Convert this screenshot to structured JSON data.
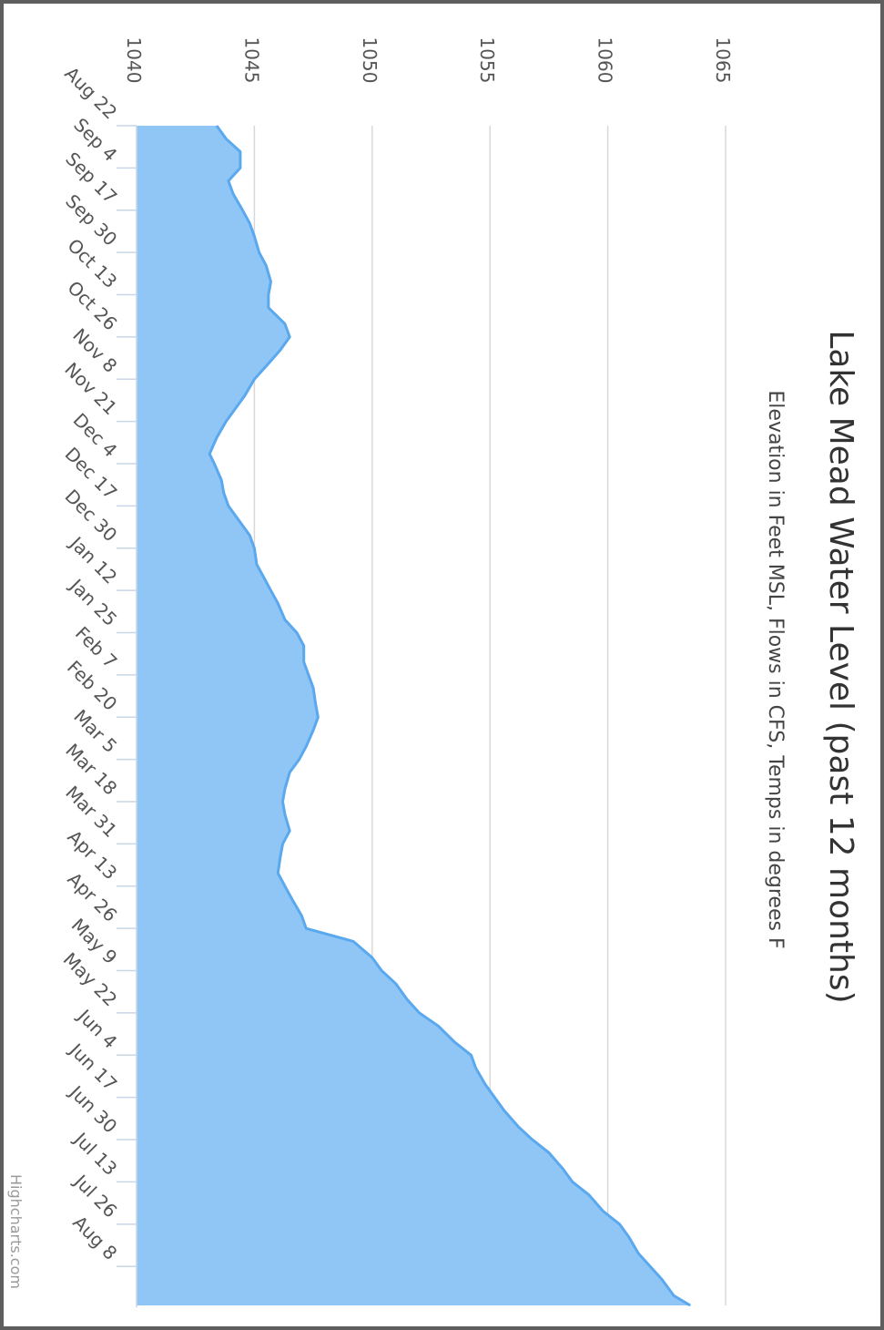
{
  "chart_data": {
    "type": "area",
    "title": "Lake Mead Water Level (past 12 months)",
    "subtitle": "Elevation in Feet MSL, Flows in CFS, Temps in degrees F",
    "xlabel": "",
    "ylabel": "",
    "ylim": [
      1040,
      1065
    ],
    "yticks": [
      1040,
      1045,
      1050,
      1055,
      1060,
      1065
    ],
    "xticks": [
      "Aug 22",
      "Sep 4",
      "Sep 17",
      "Sep 30",
      "Oct 13",
      "Oct 26",
      "Nov 8",
      "Nov 21",
      "Dec 4",
      "Dec 17",
      "Dec 30",
      "Jan 12",
      "Jan 25",
      "Feb 7",
      "Feb 20",
      "Mar 5",
      "Mar 18",
      "Mar 31",
      "Apr 13",
      "Apr 26",
      "May 9",
      "May 22",
      "Jun 4",
      "Jun 17",
      "Jun 30",
      "Jul 13",
      "Jul 26",
      "Aug 8"
    ],
    "grid": true,
    "legend": "none",
    "orientation": "rotated 90° clockwise",
    "series": [
      {
        "x": [
          "Aug 22",
          "Aug 26",
          "Aug 30",
          "Sep 4",
          "Sep 8",
          "Sep 12",
          "Sep 17",
          "Sep 21",
          "Sep 25",
          "Sep 30",
          "Oct 4",
          "Oct 9",
          "Oct 13",
          "Oct 17",
          "Oct 22",
          "Oct 26",
          "Oct 30",
          "Nov 4",
          "Nov 8",
          "Nov 13",
          "Nov 17",
          "Nov 21",
          "Nov 26",
          "Dec 1",
          "Dec 4",
          "Dec 9",
          "Dec 13",
          "Dec 17",
          "Dec 21",
          "Dec 26",
          "Dec 30",
          "Jan 4",
          "Jan 8",
          "Jan 12",
          "Jan 16",
          "Jan 21",
          "Jan 25",
          "Jan 29",
          "Feb 3",
          "Feb 7",
          "Feb 11",
          "Feb 16",
          "Feb 20",
          "Feb 24",
          "Mar 1",
          "Mar 5",
          "Mar 9",
          "Mar 14",
          "Mar 18",
          "Mar 22",
          "Mar 27",
          "Mar 31",
          "Apr 4",
          "Apr 9",
          "Apr 13",
          "Apr 17",
          "Apr 22",
          "Apr 26",
          "Apr 30",
          "May 5",
          "May 9",
          "May 13",
          "May 18",
          "May 22",
          "May 26",
          "May 31",
          "Jun 4",
          "Jun 8",
          "Jun 13",
          "Jun 17",
          "Jun 21",
          "Jun 26",
          "Jun 30",
          "Jul 4",
          "Jul 9",
          "Jul 13",
          "Jul 17",
          "Jul 22",
          "Jul 26",
          "Jul 30",
          "Aug 4",
          "Aug 8",
          "Aug 12",
          "Aug 17",
          "Aug 20"
        ],
        "values": [
          1043.4,
          1043.8,
          1044.4,
          1044.4,
          1043.9,
          1044.1,
          1044.5,
          1044.8,
          1045.0,
          1045.2,
          1045.5,
          1045.7,
          1045.6,
          1045.6,
          1046.3,
          1046.5,
          1046.1,
          1045.5,
          1045.0,
          1044.6,
          1044.2,
          1043.8,
          1043.4,
          1043.1,
          1043.3,
          1043.6,
          1043.7,
          1043.9,
          1044.3,
          1044.8,
          1045.0,
          1045.1,
          1045.4,
          1045.7,
          1046.0,
          1046.3,
          1046.8,
          1047.1,
          1047.1,
          1047.3,
          1047.5,
          1047.6,
          1047.7,
          1047.5,
          1047.2,
          1046.9,
          1046.5,
          1046.3,
          1046.2,
          1046.3,
          1046.5,
          1046.2,
          1046.1,
          1046.0,
          1046.3,
          1046.6,
          1047.0,
          1047.2,
          1049.2,
          1050.0,
          1050.4,
          1051.0,
          1051.5,
          1052.0,
          1052.8,
          1053.5,
          1054.2,
          1054.4,
          1054.8,
          1055.2,
          1055.6,
          1056.2,
          1056.8,
          1057.5,
          1058.1,
          1058.5,
          1059.2,
          1059.8,
          1060.5,
          1060.9,
          1061.3,
          1061.8,
          1062.3,
          1062.8,
          1063.5
        ]
      }
    ]
  },
  "credit": "Highcharts.com",
  "colors": {
    "area_fill": "#90c6f5",
    "area_line": "#5aa8ee",
    "grid": "#d8d8d8",
    "frame": "#5e5e5e"
  }
}
